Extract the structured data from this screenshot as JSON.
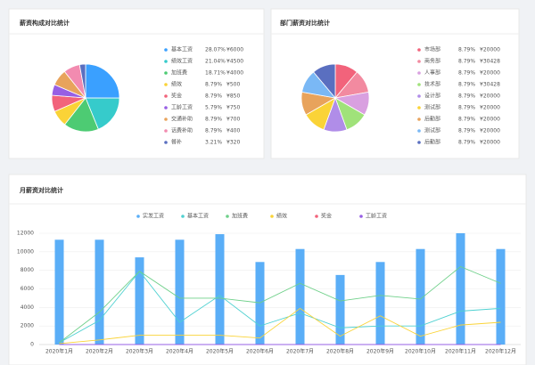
{
  "chart_data": [
    {
      "type": "pie",
      "title": "薪资构成对比统计",
      "categories": [
        "基本工资",
        "绩效工资",
        "加班费",
        "绩效",
        "奖金",
        "工龄工资",
        "交通补助",
        "话费补助",
        "餐补"
      ],
      "values": [
        28.07,
        21.04,
        18.71,
        8.79,
        8.79,
        5.79,
        8.79,
        8.79,
        3.21
      ],
      "value_labels": [
        "28.07%",
        "21.04%",
        "18.71%",
        "8.79%",
        "8.79%",
        "5.79%",
        "8.79%",
        "8.79%",
        "3.21%"
      ],
      "amount_labels": [
        "¥6000",
        "¥4500",
        "¥4000",
        "¥500",
        "¥850",
        "¥750",
        "¥700",
        "¥400",
        "¥320"
      ],
      "colors": [
        "#3aa0ff",
        "#36cbcb",
        "#4dcb73",
        "#fad337",
        "#f2637b",
        "#975fe4",
        "#e8a35c",
        "#f28bb0",
        "#5a6fc0"
      ]
    },
    {
      "type": "pie",
      "title": "部门薪资对比统计",
      "categories": [
        "市场部",
        "商务部",
        "人事部",
        "技术部",
        "设计部",
        "测试部",
        "后勤部",
        "测试部",
        "后勤部"
      ],
      "values": [
        8.79,
        8.79,
        8.79,
        8.79,
        8.79,
        8.79,
        8.79,
        8.79,
        8.79
      ],
      "value_labels": [
        "8.79%",
        "8.79%",
        "8.79%",
        "8.79%",
        "8.79%",
        "8.79%",
        "8.79%",
        "8.79%",
        "8.79%"
      ],
      "amount_labels": [
        "¥20000",
        "¥30428",
        "¥20000",
        "¥30428",
        "¥20000",
        "¥20000",
        "¥20000",
        "¥20000",
        "¥20000"
      ],
      "colors": [
        "#f2637b",
        "#f28aa0",
        "#d9a0e0",
        "#a0e27a",
        "#b08de8",
        "#fad337",
        "#e8a35c",
        "#7ab8f5",
        "#5a6fc0"
      ]
    },
    {
      "type": "combo",
      "title": "月薪资对比统计",
      "categories": [
        "2020年1月",
        "2020年2月",
        "2020年3月",
        "2020年4月",
        "2020年5月",
        "2020年6月",
        "2020年7月",
        "2020年8月",
        "2020年9月",
        "2020年10月",
        "2020年11月",
        "2020年12月"
      ],
      "ylim": [
        0,
        12000
      ],
      "yticks": [
        0,
        2000,
        4000,
        6000,
        8000,
        10000,
        12000
      ],
      "grid": true,
      "series": [
        {
          "name": "实发工资",
          "kind": "bar",
          "color": "#5aaef7",
          "values": [
            11300,
            11300,
            9400,
            11300,
            11900,
            8900,
            10300,
            7500,
            8900,
            10300,
            12000,
            10300
          ]
        },
        {
          "name": "基本工资",
          "kind": "line",
          "color": "#4fd1d1",
          "values": [
            200,
            2600,
            7900,
            2400,
            5300,
            2000,
            3400,
            1800,
            2000,
            2000,
            3600,
            3900
          ]
        },
        {
          "name": "加班费",
          "kind": "line",
          "color": "#6fd08a",
          "values": [
            200,
            3500,
            7900,
            5000,
            5000,
            4500,
            6600,
            4700,
            5300,
            4900,
            8400,
            6600
          ]
        },
        {
          "name": "绩效",
          "kind": "line",
          "color": "#fad337",
          "values": [
            100,
            500,
            1000,
            1000,
            1000,
            700,
            3900,
            900,
            3100,
            900,
            2100,
            2400
          ]
        },
        {
          "name": "奖金",
          "kind": "line",
          "color": "#f2637b",
          "values": [
            0,
            0,
            0,
            0,
            0,
            0,
            0,
            0,
            0,
            0,
            0,
            0
          ]
        },
        {
          "name": "工龄工资",
          "kind": "line",
          "color": "#975fe4",
          "values": [
            0,
            0,
            0,
            0,
            0,
            0,
            0,
            0,
            0,
            0,
            0,
            0
          ]
        }
      ]
    }
  ]
}
